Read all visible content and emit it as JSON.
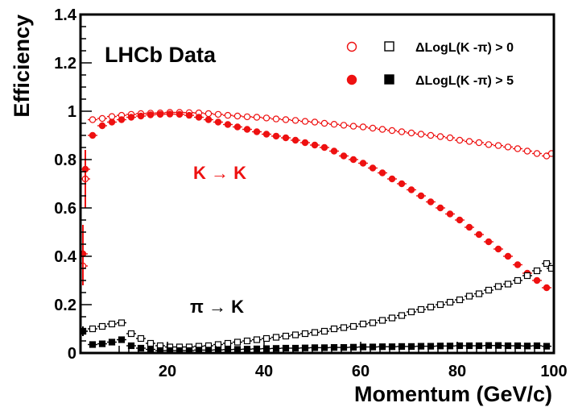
{
  "chart_data": {
    "type": "scatter",
    "xlabel": "Momentum (GeV/c)",
    "ylabel": "Efficiency",
    "xlim": [
      2,
      100
    ],
    "ylim": [
      0,
      1.4
    ],
    "x_ticks": [
      "20",
      "40",
      "60",
      "80",
      "100"
    ],
    "y_ticks": [
      "0",
      "0.2",
      "0.4",
      "0.6",
      "0.8",
      "1",
      "1.2",
      "1.4"
    ],
    "grid": false,
    "legend_position": "top-right",
    "annotations": {
      "experiment": "LHCb Data",
      "k_to_k": "K → K",
      "pi_to_k": "π → K"
    },
    "legend": [
      {
        "label": "ΔLogL(K -π) > 0",
        "marker_kaon": "open-circle",
        "marker_pion": "open-square"
      },
      {
        "label": "ΔLogL(K -π) > 5",
        "marker_kaon": "filled-circle",
        "marker_pion": "filled-square"
      }
    ],
    "colors": {
      "kaon": "#ee1111",
      "pion": "#000000"
    },
    "series": [
      {
        "name": "K → K, ΔLogL(K -π) > 0",
        "marker": "open-circle",
        "color": "#ee1111",
        "x": [
          2.5,
          3,
          4.5,
          6.5,
          8.5,
          10.5,
          12.5,
          14.5,
          16.5,
          18.5,
          20.5,
          22.5,
          24.5,
          26.5,
          28.5,
          30.5,
          32.5,
          34.5,
          36.5,
          38.5,
          40.5,
          42.5,
          44.5,
          46.5,
          48.5,
          50.5,
          52.5,
          54.5,
          56.5,
          58.5,
          60.5,
          62.5,
          64.5,
          66.5,
          68.5,
          70.5,
          72.5,
          74.5,
          76.5,
          78.5,
          80.5,
          82.5,
          84.5,
          86.5,
          88.5,
          90.5,
          92.5,
          94.5,
          96.5,
          98.5,
          99.5
        ],
        "y": [
          0.36,
          0.72,
          0.965,
          0.97,
          0.978,
          0.983,
          0.987,
          0.99,
          0.992,
          0.993,
          0.995,
          0.995,
          0.994,
          0.993,
          0.99,
          0.987,
          0.983,
          0.98,
          0.977,
          0.975,
          0.972,
          0.968,
          0.965,
          0.962,
          0.958,
          0.955,
          0.95,
          0.946,
          0.942,
          0.938,
          0.935,
          0.93,
          0.925,
          0.92,
          0.915,
          0.91,
          0.905,
          0.9,
          0.895,
          0.89,
          0.88,
          0.875,
          0.87,
          0.862,
          0.858,
          0.852,
          0.845,
          0.835,
          0.825,
          0.815,
          0.825
        ],
        "yerr": [
          0.08,
          0.12,
          0.01,
          0,
          0,
          0,
          0,
          0,
          0,
          0,
          0,
          0,
          0,
          0,
          0,
          0,
          0,
          0,
          0,
          0,
          0,
          0,
          0,
          0,
          0,
          0,
          0,
          0,
          0,
          0,
          0,
          0,
          0,
          0,
          0,
          0,
          0,
          0,
          0,
          0,
          0,
          0,
          0,
          0,
          0,
          0,
          0,
          0,
          0,
          0,
          0
        ]
      },
      {
        "name": "K → K, ΔLogL(K -π) > 5",
        "marker": "filled-circle",
        "color": "#ee1111",
        "x": [
          2.5,
          3,
          4.5,
          6.5,
          8.5,
          10.5,
          12.5,
          14.5,
          16.5,
          18.5,
          20.5,
          22.5,
          24.5,
          26.5,
          28.5,
          30.5,
          32.5,
          34.5,
          36.5,
          38.5,
          40.5,
          42.5,
          44.5,
          46.5,
          48.5,
          50.5,
          52.5,
          54.5,
          56.5,
          58.5,
          60.5,
          62.5,
          64.5,
          66.5,
          68.5,
          70.5,
          72.5,
          74.5,
          76.5,
          78.5,
          80.5,
          82.5,
          84.5,
          86.5,
          88.5,
          90.5,
          92.5,
          94.5,
          96.5,
          98.5
        ],
        "y": [
          0.41,
          0.76,
          0.9,
          0.94,
          0.955,
          0.965,
          0.975,
          0.98,
          0.985,
          0.987,
          0.988,
          0.987,
          0.983,
          0.975,
          0.965,
          0.955,
          0.945,
          0.935,
          0.925,
          0.915,
          0.905,
          0.897,
          0.89,
          0.88,
          0.87,
          0.86,
          0.85,
          0.835,
          0.815,
          0.8,
          0.785,
          0.765,
          0.745,
          0.72,
          0.7,
          0.675,
          0.65,
          0.625,
          0.6,
          0.575,
          0.55,
          0.52,
          0.49,
          0.46,
          0.43,
          0.4,
          0.365,
          0.33,
          0.3,
          0.27
        ],
        "yerr": [
          0.12,
          0.08,
          0.01,
          0,
          0,
          0,
          0,
          0,
          0,
          0,
          0,
          0,
          0,
          0,
          0,
          0,
          0,
          0,
          0,
          0,
          0,
          0,
          0,
          0,
          0,
          0,
          0,
          0,
          0,
          0,
          0,
          0,
          0,
          0,
          0,
          0,
          0,
          0,
          0,
          0,
          0,
          0,
          0,
          0,
          0,
          0,
          0,
          0,
          0,
          0
        ]
      },
      {
        "name": "π → K, ΔLogL(K -π) > 0",
        "marker": "open-square",
        "color": "#000000",
        "x": [
          2.5,
          4.5,
          6.5,
          8.5,
          10.5,
          12.5,
          14.5,
          16.5,
          18.5,
          20.5,
          22.5,
          24.5,
          26.5,
          28.5,
          30.5,
          32.5,
          34.5,
          36.5,
          38.5,
          40.5,
          42.5,
          44.5,
          46.5,
          48.5,
          50.5,
          52.5,
          54.5,
          56.5,
          58.5,
          60.5,
          62.5,
          64.5,
          66.5,
          68.5,
          70.5,
          72.5,
          74.5,
          76.5,
          78.5,
          80.5,
          82.5,
          84.5,
          86.5,
          88.5,
          90.5,
          92.5,
          94.5,
          96.5,
          98.5,
          99.5
        ],
        "y": [
          0.09,
          0.1,
          0.11,
          0.12,
          0.125,
          0.08,
          0.06,
          0.04,
          0.03,
          0.025,
          0.025,
          0.025,
          0.028,
          0.03,
          0.035,
          0.04,
          0.045,
          0.05,
          0.055,
          0.06,
          0.065,
          0.07,
          0.075,
          0.08,
          0.085,
          0.09,
          0.1,
          0.105,
          0.11,
          0.12,
          0.125,
          0.135,
          0.145,
          0.155,
          0.17,
          0.18,
          0.19,
          0.2,
          0.21,
          0.22,
          0.235,
          0.245,
          0.26,
          0.275,
          0.285,
          0.3,
          0.32,
          0.34,
          0.37,
          0.35
        ],
        "yerr": [
          0.02,
          0,
          0,
          0,
          0,
          0,
          0,
          0,
          0,
          0,
          0,
          0,
          0,
          0,
          0,
          0,
          0,
          0,
          0,
          0,
          0,
          0,
          0,
          0,
          0,
          0,
          0,
          0,
          0,
          0,
          0,
          0,
          0,
          0,
          0,
          0,
          0,
          0,
          0,
          0,
          0,
          0,
          0,
          0,
          0,
          0,
          0,
          0,
          0,
          0
        ]
      },
      {
        "name": "π → K, ΔLogL(K -π) > 5",
        "marker": "filled-square",
        "color": "#000000",
        "x": [
          2.5,
          4.5,
          6.5,
          8.5,
          10.5,
          12.5,
          14.5,
          16.5,
          18.5,
          20.5,
          22.5,
          24.5,
          26.5,
          28.5,
          30.5,
          32.5,
          34.5,
          36.5,
          38.5,
          40.5,
          42.5,
          44.5,
          46.5,
          48.5,
          50.5,
          52.5,
          54.5,
          56.5,
          58.5,
          60.5,
          62.5,
          64.5,
          66.5,
          68.5,
          70.5,
          72.5,
          74.5,
          76.5,
          78.5,
          80.5,
          82.5,
          84.5,
          86.5,
          88.5,
          90.5,
          92.5,
          94.5,
          96.5,
          98.5
        ],
        "y": [
          0.09,
          0.035,
          0.038,
          0.045,
          0.055,
          0.03,
          0.02,
          0.015,
          0.01,
          0.01,
          0.01,
          0.01,
          0.012,
          0.012,
          0.013,
          0.014,
          0.015,
          0.016,
          0.017,
          0.018,
          0.019,
          0.02,
          0.02,
          0.021,
          0.022,
          0.022,
          0.023,
          0.023,
          0.024,
          0.025,
          0.025,
          0.026,
          0.026,
          0.027,
          0.027,
          0.028,
          0.028,
          0.029,
          0.029,
          0.03,
          0.03,
          0.03,
          0.031,
          0.031,
          0.03,
          0.03,
          0.029,
          0.03,
          0.028
        ],
        "yerr": [
          0.01,
          0,
          0,
          0,
          0,
          0,
          0,
          0,
          0,
          0,
          0,
          0,
          0,
          0,
          0,
          0,
          0,
          0,
          0,
          0,
          0,
          0,
          0,
          0,
          0,
          0,
          0,
          0,
          0,
          0,
          0,
          0,
          0,
          0,
          0,
          0,
          0,
          0,
          0,
          0,
          0,
          0,
          0,
          0,
          0,
          0,
          0,
          0,
          0
        ]
      }
    ]
  }
}
